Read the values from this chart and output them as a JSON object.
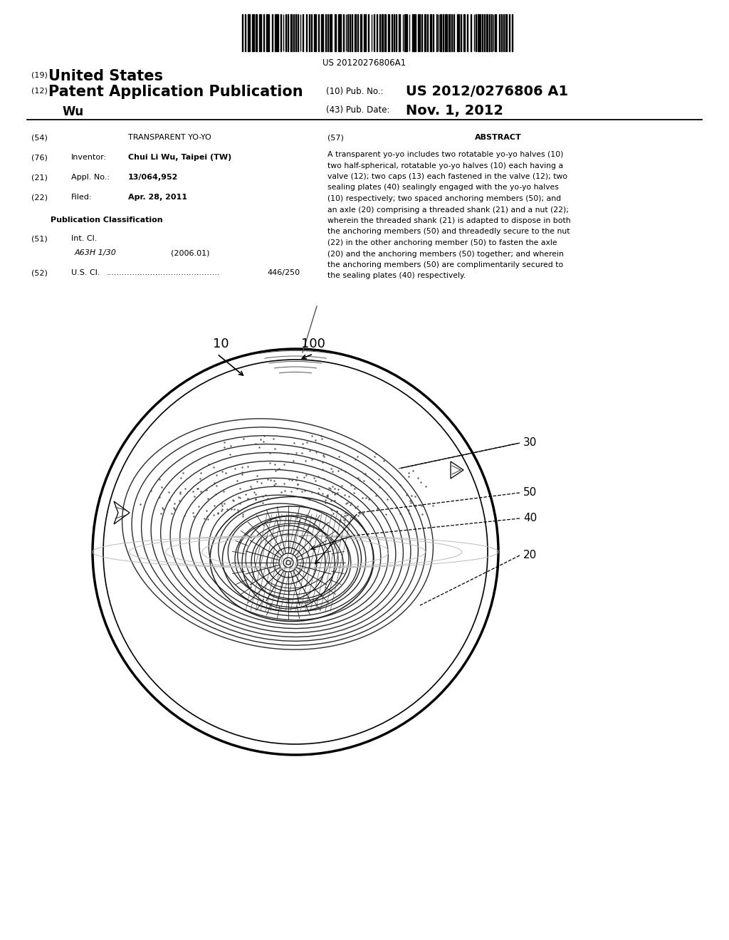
{
  "barcode_text": "US 20120276806A1",
  "header_19_sup": "(19)",
  "header_19_text": "United States",
  "header_12_sup": "(12)",
  "header_12_text": "Patent Application Publication",
  "header_10_label": "(10) Pub. No.:",
  "header_10_val": "US 2012/0276806 A1",
  "header_43_label": "(43) Pub. Date:",
  "header_43_val": "Nov. 1, 2012",
  "author": "Wu",
  "f54_lbl": "(54)",
  "f54_val": "TRANSPARENT YO-YO",
  "f76_lbl": "(76)",
  "f76_name": "Inventor:",
  "f76_val": "Chui Li Wu, Taipei (TW)",
  "f21_lbl": "(21)",
  "f21_name": "Appl. No.:",
  "f21_val": "13/064,952",
  "f22_lbl": "(22)",
  "f22_name": "Filed:",
  "f22_val": "Apr. 28, 2011",
  "pub_class": "Publication Classification",
  "f51_lbl": "(51)",
  "f51_name": "Int. Cl.",
  "f51_class": "A63H 1/30",
  "f51_year": "(2006.01)",
  "f52_lbl": "(52)",
  "f52_name": "U.S. Cl.",
  "f52_dots": "............................................",
  "f52_val": "446/250",
  "f57_lbl": "(57)",
  "f57_title": "ABSTRACT",
  "abstract_lines": [
    "A transparent yo-yo includes two rotatable yo-yo halves (10)",
    "two half-spherical, rotatable yo-yo halves (10) each having a",
    "valve (12); two caps (13) each fastened in the valve (12); two",
    "sealing plates (40) sealingly engaged with the yo-yo halves",
    "(10) respectively; two spaced anchoring members (50); and",
    "an axle (20) comprising a threaded shank (21) and a nut (22);",
    "wherein the threaded shank (21) is adapted to dispose in both",
    "the anchoring members (50) and threadedly secure to the nut",
    "(22) in the other anchoring member (50) to fasten the axle",
    "(20) and the anchoring members (50) together; and wherein",
    "the anchoring members (50) are complimentarily secured to",
    "the sealing plates (40) respectively."
  ],
  "lbl_10": "10",
  "lbl_100": "100",
  "lbl_30": "30",
  "lbl_50": "50",
  "lbl_40": "40",
  "lbl_20": "20",
  "bg": "#ffffff",
  "fg": "#000000"
}
